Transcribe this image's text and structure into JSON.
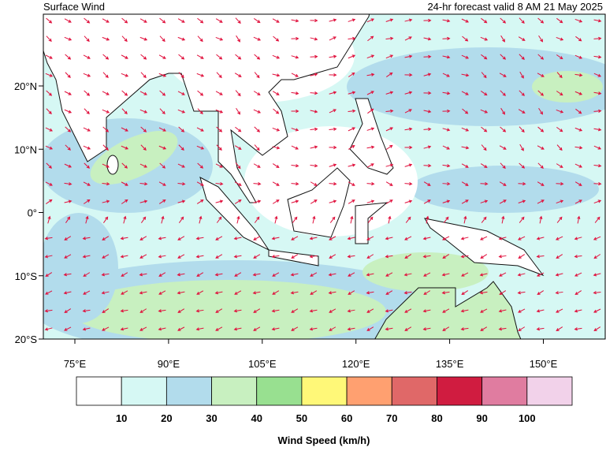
{
  "header": {
    "title": "Surface Wind",
    "subtitle": "24-hr forecast valid 8 AM 21 May 2025"
  },
  "map": {
    "lat_labels": [
      "20°N",
      "10°N",
      "0°",
      "10°S",
      "20°S"
    ],
    "lon_labels": [
      "75°E",
      "90°E",
      "105°E",
      "120°E",
      "135°E",
      "150°E"
    ]
  },
  "legend": {
    "title": "Wind Speed (km/h)",
    "ticks": [
      10,
      20,
      30,
      40,
      50,
      60,
      70,
      80,
      90,
      100
    ],
    "colors": [
      "#ffffff",
      "#d6f8f4",
      "#b2dcec",
      "#c8f0c0",
      "#98e090",
      "#fff878",
      "#ffa070",
      "#e06868",
      "#d01c40",
      "#e07ca0",
      "#f2d2ea"
    ]
  }
}
